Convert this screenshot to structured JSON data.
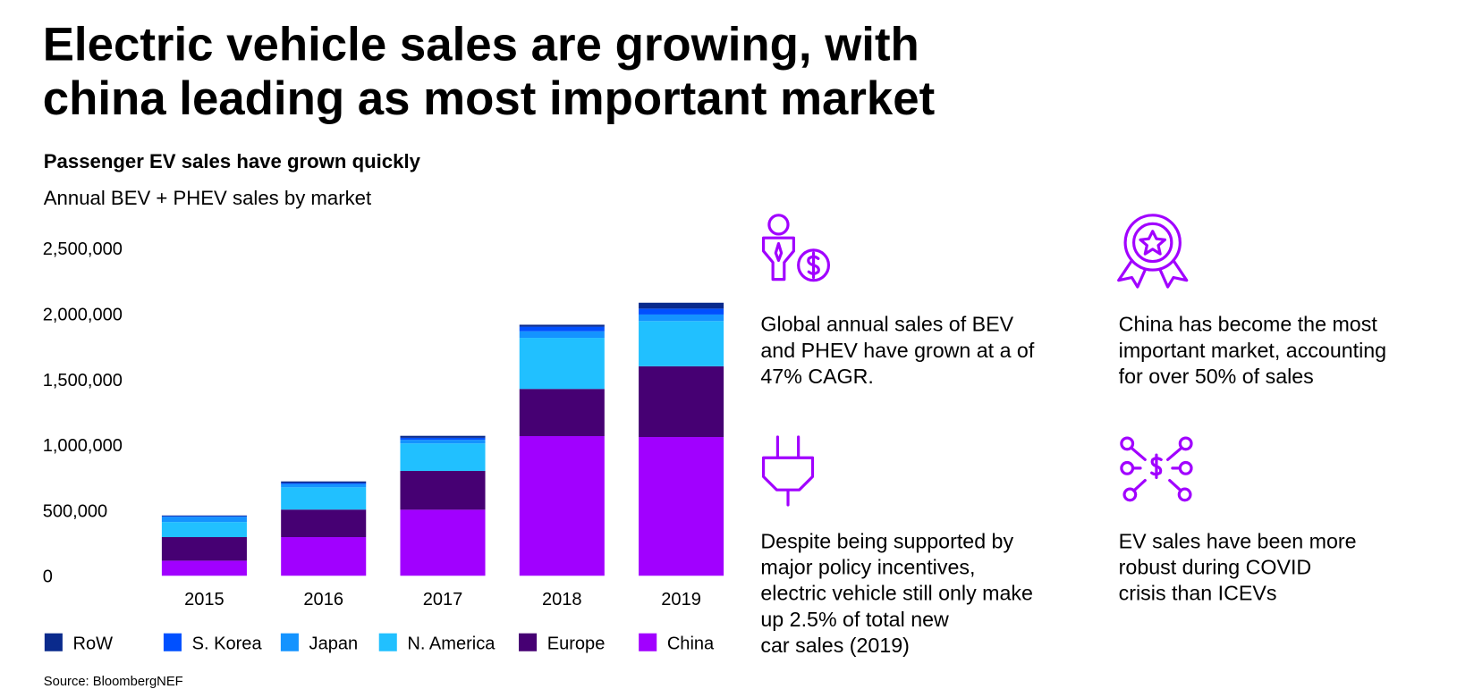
{
  "title_lines": [
    "Electric vehicle sales are growing, with",
    "china leading as most important market"
  ],
  "chart_data": {
    "type": "bar",
    "stacked": true,
    "title": "Passenger EV sales have grown quickly",
    "subtitle": "Annual BEV + PHEV sales by market",
    "categories": [
      "2015",
      "2016",
      "2017",
      "2018",
      "2019"
    ],
    "series": [
      {
        "name": "RoW",
        "color": "#0a2a8c",
        "values": [
          5000,
          12000,
          15000,
          15000,
          45000
        ]
      },
      {
        "name": "S. Korea",
        "color": "#0050ff",
        "values": [
          5000,
          8000,
          15000,
          35000,
          45000
        ]
      },
      {
        "name": "Japan",
        "color": "#1493ff",
        "values": [
          40000,
          25000,
          28000,
          50000,
          50000
        ]
      },
      {
        "name": "N. America",
        "color": "#21c0ff",
        "values": [
          115000,
          170000,
          210000,
          390000,
          345000
        ]
      },
      {
        "name": "Europe",
        "color": "#460073",
        "values": [
          180000,
          210000,
          296000,
          360000,
          540000
        ]
      },
      {
        "name": "China",
        "color": "#a100ff",
        "values": [
          115000,
          295000,
          504000,
          1066000,
          1059000
        ]
      }
    ],
    "ylim": [
      0,
      2500000
    ],
    "yticks": [
      0,
      {
        "value": 500000,
        "label": "500,000"
      },
      {
        "value": 1000000,
        "label": "1,000,000"
      },
      {
        "value": 1500000,
        "label": "1,500,000"
      },
      {
        "value": 2000000,
        "label": "2,000,000"
      },
      {
        "value": 2500000,
        "label": "2,500,000"
      }
    ],
    "source": "Source: BloombergNEF"
  },
  "info": [
    {
      "lines": [
        "Global annual sales of BEV",
        "and PHEV have grown at a of",
        "47% CAGR."
      ]
    },
    {
      "lines": [
        "China has become the most",
        "important market, accounting",
        "for over 50% of sales"
      ]
    },
    {
      "lines": [
        "Despite being supported by",
        "major policy incentives,",
        "electric vehicle still only make",
        "up 2.5% of total new",
        "car sales (2019)"
      ]
    },
    {
      "lines": [
        "EV sales have been more",
        "robust during COVID",
        "crisis than ICEVs"
      ]
    }
  ]
}
